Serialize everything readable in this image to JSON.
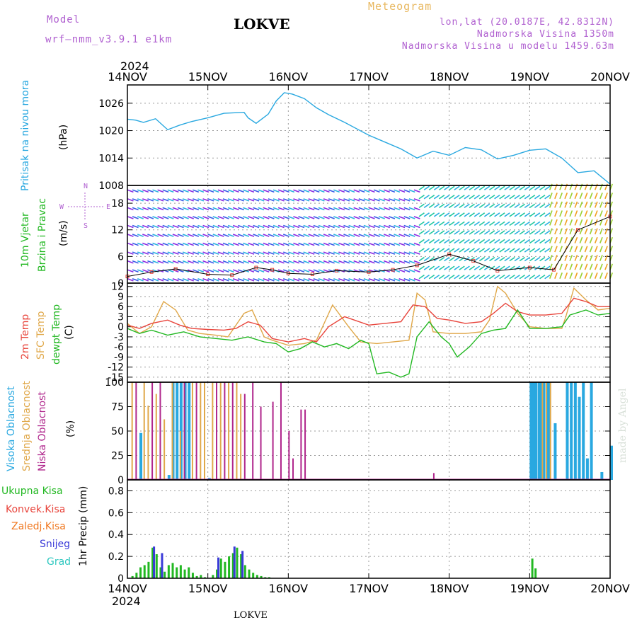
{
  "header": {
    "model_label": "Model",
    "model_name": "wrf—nmm_v3.9.1  e1km",
    "station": "LOKVE",
    "meteogram": "Meteogram",
    "lonlat": "lon,lat (20.0187E, 42.8312N)",
    "altitude": "Nadmorska Visina 1350m",
    "model_altitude": "Nadmorska Visina u modelu 1459.63m",
    "year_top": "2024",
    "year_bottom": "2024",
    "footer_station": "LOKVE",
    "watermark": "made by Angel"
  },
  "colors": {
    "pressure": "#29a8e0",
    "sfc": "#e0a84a",
    "t2m": "#e8453c",
    "dewpt": "#22b822",
    "high_cloud": "#29a8e0",
    "mid_cloud": "#e0a84a",
    "low_cloud": "#b0268c",
    "precip_total": "#22b822",
    "precip_conv": "#e8453c",
    "precip_frz": "#f07820",
    "precip_snow": "#3a3ad8",
    "precip_grad": "#30c8c0",
    "wind_purple": "#8a2be2"
  },
  "axis_labels": {
    "pressure": [
      "Pritisak na nivou mora",
      "(hPa)"
    ],
    "wind": [
      "10m Vjetar",
      "Brzina i Pravac",
      "(m/s)"
    ],
    "compass": [
      "N",
      "W",
      "E",
      "S"
    ],
    "temp": [
      "2m Temp",
      "SFC Temp",
      "dewpt Temp",
      "(C)"
    ],
    "cloud": [
      "Visoka Oblacnost",
      "Srednja Oblacnost",
      "Niska Oblacnost",
      "(%)"
    ],
    "precip_legend": [
      "Ukupna Kisa",
      "Konvek.Kisa",
      "Zaledj.Kisa",
      "Snijeg",
      "Grad"
    ],
    "precip_axis": "1hr Precip (mm)"
  },
  "chart_data": [
    {
      "type": "line",
      "name": "pressure",
      "x_ticks": [
        "14NOV",
        "15NOV",
        "16NOV",
        "17NOV",
        "18NOV",
        "19NOV",
        "20NOV"
      ],
      "yticks": [
        1008,
        1014,
        1020,
        1026
      ],
      "ylim": [
        1008,
        1030
      ],
      "grid": true,
      "series": [
        {
          "x": [
            0,
            0.1,
            0.2,
            0.35,
            0.5,
            0.65,
            0.8,
            1.0,
            1.2,
            1.45,
            1.5,
            1.6,
            1.75,
            1.85,
            1.95,
            2.05,
            2.2,
            2.35,
            2.5,
            2.7,
            3.0,
            3.2,
            3.4,
            3.6,
            3.8,
            4.0,
            4.2,
            4.4,
            4.6,
            4.8,
            5.0,
            5.2,
            5.4,
            5.6,
            5.8,
            6.0
          ],
          "y": [
            1022.5,
            1022.3,
            1021.8,
            1022.6,
            1020.2,
            1021.2,
            1022.0,
            1022.8,
            1023.8,
            1024.0,
            1022.8,
            1021.6,
            1023.6,
            1026.5,
            1028.3,
            1028.0,
            1027.0,
            1025.0,
            1023.5,
            1021.8,
            1019.0,
            1017.5,
            1016.0,
            1014.0,
            1015.5,
            1014.6,
            1016.3,
            1015.8,
            1013.8,
            1014.6,
            1015.7,
            1016.0,
            1014.0,
            1010.8,
            1011.2,
            1008.3
          ]
        }
      ]
    },
    {
      "type": "scatter",
      "name": "wind",
      "x_ticks": [
        "14NOV",
        "15NOV",
        "16NOV",
        "17NOV",
        "18NOV",
        "19NOV",
        "20NOV"
      ],
      "yticks": [
        0,
        6,
        12,
        18
      ],
      "ylim": [
        0,
        22
      ],
      "grid": true,
      "series": [
        {
          "name": "wind speed",
          "x": [
            0,
            0.3,
            0.6,
            1.0,
            1.3,
            1.6,
            1.8,
            2.0,
            2.3,
            2.6,
            3.0,
            3.3,
            3.6,
            4.0,
            4.3,
            4.6,
            5.0,
            5.3,
            5.6,
            6.0
          ],
          "y": [
            1.5,
            2.5,
            3.2,
            2.0,
            1.8,
            3.5,
            3.0,
            2.2,
            2.0,
            2.8,
            2.5,
            3.0,
            4.0,
            6.5,
            5.0,
            2.8,
            3.5,
            3.0,
            12.0,
            15.0
          ]
        }
      ]
    },
    {
      "type": "line",
      "name": "temperature",
      "x_ticks": [
        "14NOV",
        "15NOV",
        "16NOV",
        "17NOV",
        "18NOV",
        "19NOV",
        "20NOV"
      ],
      "yticks": [
        12,
        9,
        6,
        3,
        0,
        -3,
        -6,
        -9,
        -12,
        -15
      ],
      "ylim": [
        -16.5,
        13
      ],
      "grid": true,
      "series": [
        {
          "name": "2m Temp",
          "x": [
            0,
            0.15,
            0.3,
            0.5,
            0.65,
            0.8,
            1.0,
            1.2,
            1.35,
            1.5,
            1.65,
            1.8,
            2.0,
            2.2,
            2.35,
            2.5,
            2.7,
            3.0,
            3.2,
            3.4,
            3.55,
            3.7,
            3.85,
            4.0,
            4.2,
            4.4,
            4.55,
            4.7,
            4.85,
            5.0,
            5.2,
            5.4,
            5.55,
            5.7,
            5.85,
            6.0
          ],
          "y": [
            0.5,
            -0.5,
            1.0,
            2.0,
            0.5,
            -0.5,
            -0.8,
            -1.0,
            -0.5,
            1.5,
            0.5,
            -3.5,
            -4.5,
            -3.5,
            -4.5,
            0.0,
            3.0,
            0.5,
            1.0,
            1.5,
            6.5,
            6.0,
            2.5,
            2.0,
            1.0,
            1.5,
            4.0,
            7.0,
            4.5,
            3.5,
            3.5,
            4.0,
            8.5,
            7.5,
            6.0,
            6.0
          ]
        },
        {
          "name": "SFC Temp",
          "x": [
            0,
            0.15,
            0.3,
            0.45,
            0.6,
            0.75,
            0.9,
            1.1,
            1.25,
            1.45,
            1.55,
            1.7,
            1.8,
            2.0,
            2.2,
            2.35,
            2.55,
            2.75,
            2.9,
            3.1,
            3.3,
            3.5,
            3.6,
            3.7,
            3.8,
            4.0,
            4.2,
            4.4,
            4.5,
            4.6,
            4.7,
            4.85,
            5.0,
            5.2,
            5.4,
            5.45,
            5.55,
            5.7,
            5.85,
            6.0
          ],
          "y": [
            1.0,
            -2.0,
            0.0,
            7.5,
            5.0,
            -1.0,
            -2.0,
            -2.5,
            -3.0,
            4.0,
            5.0,
            -3.0,
            -4.0,
            -5.5,
            -5.0,
            -4.0,
            6.5,
            0.0,
            -4.5,
            -5.0,
            -4.5,
            -4.0,
            10.0,
            8.0,
            -1.5,
            -2.0,
            -2.0,
            -1.5,
            2.0,
            12.0,
            10.0,
            4.0,
            0.0,
            -0.5,
            -0.5,
            3.0,
            11.5,
            8.0,
            5.0,
            5.5
          ]
        },
        {
          "name": "dewpt Temp",
          "x": [
            0,
            0.15,
            0.3,
            0.5,
            0.7,
            0.9,
            1.1,
            1.3,
            1.5,
            1.7,
            1.85,
            2.0,
            2.15,
            2.3,
            2.45,
            2.6,
            2.75,
            2.9,
            3.0,
            3.1,
            3.25,
            3.4,
            3.5,
            3.6,
            3.75,
            3.9,
            4.0,
            4.1,
            4.25,
            4.4,
            4.55,
            4.7,
            4.85,
            5.0,
            5.2,
            5.4,
            5.5,
            5.7,
            5.85,
            6.0
          ],
          "y": [
            -0.5,
            -2.0,
            -1.0,
            -2.5,
            -1.5,
            -3.0,
            -3.5,
            -4.0,
            -3.0,
            -4.5,
            -5.0,
            -7.5,
            -6.5,
            -4.5,
            -6.0,
            -5.0,
            -6.5,
            -4.0,
            -5.0,
            -14.0,
            -13.5,
            -15.0,
            -14.0,
            -3.0,
            1.5,
            -3.0,
            -5.0,
            -9.0,
            -6.0,
            -2.0,
            -1.0,
            -0.5,
            5.0,
            -0.5,
            -0.5,
            0.0,
            3.5,
            5.0,
            3.5,
            4.0
          ]
        }
      ]
    },
    {
      "type": "bar",
      "name": "cloud cover",
      "x_ticks": [
        "14NOV",
        "15NOV",
        "16NOV",
        "17NOV",
        "18NOV",
        "19NOV",
        "20NOV"
      ],
      "yticks": [
        0,
        25,
        50,
        75,
        100
      ],
      "ylim": [
        0,
        100
      ],
      "grid": true,
      "series": [
        {
          "name": "Visoka Oblacnost",
          "x": [
            0.15,
            0.5,
            0.55,
            0.6,
            0.65,
            0.7,
            0.75,
            1.0,
            5.0,
            5.03,
            5.06,
            5.1,
            5.13,
            5.16,
            5.2,
            5.23,
            5.3,
            5.45,
            5.5,
            5.55,
            5.6,
            5.65,
            5.7,
            5.75,
            5.88,
            6.0
          ],
          "values": [
            48,
            5,
            100,
            100,
            100,
            100,
            100,
            2,
            100,
            100,
            100,
            100,
            100,
            100,
            100,
            100,
            58,
            100,
            100,
            100,
            85,
            100,
            22,
            100,
            8,
            35
          ]
        },
        {
          "name": "Srednja Oblacnost",
          "x": [
            0.05,
            0.2,
            0.25,
            0.35,
            0.45,
            0.55,
            0.65,
            0.8,
            0.9,
            0.95,
            1.05,
            1.15,
            1.25,
            1.35,
            1.4,
            5.15,
            5.2,
            5.25
          ],
          "values": [
            100,
            100,
            76,
            88,
            62,
            100,
            50,
            100,
            100,
            100,
            100,
            100,
            100,
            100,
            88,
            100,
            100,
            100
          ]
        },
        {
          "name": "Niska Oblacnost",
          "x": [
            0.1,
            0.3,
            0.4,
            0.7,
            0.85,
            1.1,
            1.2,
            1.3,
            1.45,
            1.55,
            1.65,
            1.8,
            1.9,
            2.0,
            2.05,
            2.15,
            2.2,
            3.8
          ],
          "values": [
            100,
            100,
            100,
            100,
            100,
            100,
            100,
            100,
            88,
            100,
            75,
            80,
            100,
            50,
            22,
            72,
            72,
            7
          ]
        }
      ]
    },
    {
      "type": "bar",
      "name": "precipitation",
      "x_ticks": [
        "14NOV",
        "15NOV",
        "16NOV",
        "17NOV",
        "18NOV",
        "19NOV",
        "20NOV"
      ],
      "yticks": [
        0,
        0.2,
        0.4,
        0.6,
        0.8
      ],
      "ylim": [
        0,
        0.9
      ],
      "grid": true,
      "series": [
        {
          "name": "Ukupna Kisa",
          "x": [
            0.05,
            0.1,
            0.15,
            0.2,
            0.25,
            0.3,
            0.35,
            0.4,
            0.45,
            0.5,
            0.55,
            0.6,
            0.65,
            0.7,
            0.75,
            0.8,
            0.85,
            0.9,
            0.95,
            1.05,
            1.1,
            1.15,
            1.2,
            1.25,
            1.3,
            1.35,
            1.4,
            1.45,
            1.5,
            1.55,
            1.6,
            1.65,
            1.7,
            1.75,
            5.02,
            5.06
          ],
          "values": [
            0.02,
            0.05,
            0.1,
            0.12,
            0.15,
            0.28,
            0.22,
            0.1,
            0.06,
            0.12,
            0.14,
            0.1,
            0.12,
            0.08,
            0.1,
            0.05,
            0.02,
            0.03,
            0.01,
            0.03,
            0.08,
            0.18,
            0.15,
            0.2,
            0.23,
            0.28,
            0.22,
            0.12,
            0.08,
            0.05,
            0.03,
            0.02,
            0.01,
            0.01,
            0.18,
            0.09
          ]
        },
        {
          "name": "Snijeg",
          "x": [
            0.3,
            0.4,
            1.1,
            1.3,
            1.4
          ],
          "values": [
            0.29,
            0.23,
            0.19,
            0.29,
            0.25
          ]
        }
      ]
    }
  ]
}
